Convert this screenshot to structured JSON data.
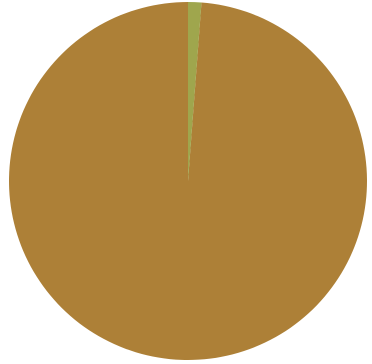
{
  "chart_data": {
    "type": "pie",
    "title": "",
    "start_angle_deg": 0,
    "direction": "counterclockwise",
    "slices": [
      {
        "value": 98.8,
        "color": "#ad8037"
      },
      {
        "value": 1.2,
        "color": "#9fa64d"
      }
    ]
  }
}
